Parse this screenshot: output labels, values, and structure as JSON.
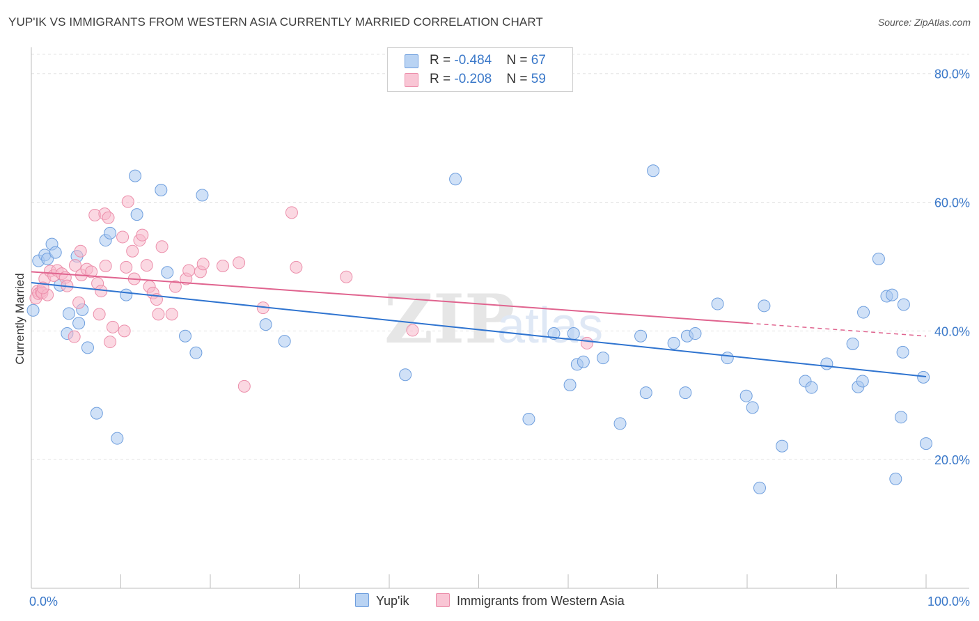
{
  "title": "YUP'IK VS IMMIGRANTS FROM WESTERN ASIA CURRENTLY MARRIED CORRELATION CHART",
  "source": "Source: ZipAtlas.com",
  "watermark": {
    "zip": "ZIP",
    "atlas": "atlas"
  },
  "legend": {
    "rows": [
      {
        "r_label": "R = ",
        "r_value": "-0.484",
        "n_label": "N = ",
        "n_value": "67",
        "fill": "#b9d3f3",
        "stroke": "#6f9fde"
      },
      {
        "r_label": "R = ",
        "r_value": "-0.208",
        "n_label": "N = ",
        "n_value": "59",
        "fill": "#f9c6d5",
        "stroke": "#ec8fab"
      }
    ]
  },
  "colors": {
    "blue_fill": "#a9c9f0",
    "blue_stroke": "#6f9fde",
    "blue_line": "#2f74d0",
    "pink_fill": "#f7b8cb",
    "pink_stroke": "#ec8fab",
    "pink_line": "#e0648f",
    "tick_label": "#3a78c9"
  },
  "chart_data": {
    "type": "scatter",
    "xlabel": "",
    "ylabel": "Currently Married",
    "xlim": [
      0,
      100
    ],
    "ylim": [
      0,
      83
    ],
    "x_tick_labels": [
      {
        "value": 0,
        "label": "0.0%"
      },
      {
        "value": 100,
        "label": "100.0%"
      }
    ],
    "y_tick_labels": [
      {
        "value": 20,
        "label": "20.0%"
      },
      {
        "value": 40,
        "label": "40.0%"
      },
      {
        "value": 60,
        "label": "60.0%"
      },
      {
        "value": 80,
        "label": "80.0%"
      }
    ],
    "grid": true,
    "legend_position": "top-center",
    "series": [
      {
        "name": "Yup'ik",
        "color": "#a9c9f0",
        "trend": {
          "x": [
            0,
            100
          ],
          "y": [
            47.5,
            32.9
          ],
          "dashed_from": null
        },
        "points": [
          [
            0.2,
            43.2
          ],
          [
            0.8,
            50.9
          ],
          [
            1.5,
            51.8
          ],
          [
            1.8,
            51.2
          ],
          [
            2.3,
            53.5
          ],
          [
            2.7,
            52.2
          ],
          [
            3.2,
            47.1
          ],
          [
            4.0,
            39.6
          ],
          [
            4.2,
            42.7
          ],
          [
            5.1,
            51.6
          ],
          [
            5.3,
            41.2
          ],
          [
            5.7,
            43.3
          ],
          [
            6.3,
            37.4
          ],
          [
            7.3,
            27.2
          ],
          [
            8.3,
            54.1
          ],
          [
            8.8,
            55.2
          ],
          [
            9.6,
            23.3
          ],
          [
            10.6,
            45.6
          ],
          [
            11.6,
            64.1
          ],
          [
            11.8,
            58.1
          ],
          [
            14.5,
            61.9
          ],
          [
            15.2,
            49.1
          ],
          [
            17.2,
            39.2
          ],
          [
            18.4,
            36.6
          ],
          [
            19.1,
            61.1
          ],
          [
            26.2,
            41.0
          ],
          [
            28.3,
            38.4
          ],
          [
            41.8,
            33.2
          ],
          [
            47.4,
            63.6
          ],
          [
            55.6,
            26.3
          ],
          [
            58.4,
            39.6
          ],
          [
            60.2,
            31.6
          ],
          [
            60.6,
            39.6
          ],
          [
            61.0,
            34.8
          ],
          [
            61.7,
            35.2
          ],
          [
            63.9,
            35.8
          ],
          [
            65.8,
            25.6
          ],
          [
            68.1,
            39.2
          ],
          [
            68.7,
            30.4
          ],
          [
            69.5,
            64.9
          ],
          [
            71.8,
            38.1
          ],
          [
            73.1,
            30.4
          ],
          [
            73.3,
            39.2
          ],
          [
            74.2,
            39.6
          ],
          [
            76.7,
            44.2
          ],
          [
            77.8,
            35.8
          ],
          [
            79.9,
            29.9
          ],
          [
            80.6,
            28.1
          ],
          [
            81.4,
            15.6
          ],
          [
            81.9,
            43.9
          ],
          [
            83.9,
            22.1
          ],
          [
            86.5,
            32.2
          ],
          [
            87.2,
            31.2
          ],
          [
            88.9,
            34.9
          ],
          [
            91.8,
            38.0
          ],
          [
            92.4,
            31.3
          ],
          [
            92.9,
            32.2
          ],
          [
            93.0,
            42.9
          ],
          [
            94.7,
            51.2
          ],
          [
            95.6,
            45.4
          ],
          [
            96.2,
            45.6
          ],
          [
            96.6,
            17.0
          ],
          [
            97.2,
            26.6
          ],
          [
            97.4,
            36.7
          ],
          [
            97.5,
            44.1
          ],
          [
            99.7,
            32.8
          ],
          [
            100.0,
            22.5
          ]
        ]
      },
      {
        "name": "Immigrants from Western Asia",
        "color": "#f7b8cb",
        "trend": {
          "x": [
            0,
            80.2
          ],
          "y": [
            49.2,
            41.2
          ],
          "dashed_from": 80.2,
          "dashed_to": [
            100,
            39.2
          ]
        },
        "points": [
          [
            0.5,
            45.1
          ],
          [
            0.7,
            46.2
          ],
          [
            0.8,
            45.8
          ],
          [
            1.1,
            46.1
          ],
          [
            1.2,
            45.9
          ],
          [
            1.5,
            48.1
          ],
          [
            1.8,
            45.6
          ],
          [
            2.1,
            49.3
          ],
          [
            2.5,
            48.6
          ],
          [
            2.9,
            49.4
          ],
          [
            3.4,
            48.9
          ],
          [
            3.8,
            48.3
          ],
          [
            4.0,
            47.0
          ],
          [
            4.8,
            39.1
          ],
          [
            4.9,
            50.2
          ],
          [
            5.3,
            44.4
          ],
          [
            5.5,
            52.4
          ],
          [
            5.6,
            48.7
          ],
          [
            6.2,
            49.6
          ],
          [
            6.7,
            49.2
          ],
          [
            7.1,
            58.0
          ],
          [
            7.4,
            47.4
          ],
          [
            7.6,
            42.6
          ],
          [
            7.8,
            46.2
          ],
          [
            8.2,
            58.2
          ],
          [
            8.3,
            50.1
          ],
          [
            8.6,
            57.6
          ],
          [
            8.8,
            38.3
          ],
          [
            9.1,
            40.6
          ],
          [
            10.2,
            54.6
          ],
          [
            10.4,
            40.0
          ],
          [
            10.6,
            49.9
          ],
          [
            10.8,
            60.1
          ],
          [
            11.3,
            52.4
          ],
          [
            11.5,
            48.1
          ],
          [
            12.1,
            54.1
          ],
          [
            12.4,
            54.9
          ],
          [
            12.9,
            50.2
          ],
          [
            13.2,
            46.9
          ],
          [
            13.6,
            45.9
          ],
          [
            14.0,
            44.9
          ],
          [
            14.2,
            42.6
          ],
          [
            14.6,
            53.1
          ],
          [
            15.7,
            42.6
          ],
          [
            16.1,
            46.9
          ],
          [
            17.3,
            48.1
          ],
          [
            17.6,
            49.4
          ],
          [
            18.9,
            49.2
          ],
          [
            19.2,
            50.4
          ],
          [
            21.4,
            50.1
          ],
          [
            23.2,
            50.6
          ],
          [
            23.8,
            31.4
          ],
          [
            25.9,
            43.6
          ],
          [
            29.1,
            58.4
          ],
          [
            29.6,
            49.9
          ],
          [
            35.2,
            48.4
          ],
          [
            42.6,
            40.1
          ],
          [
            62.1,
            38.1
          ],
          [
            1.3,
            46.7
          ]
        ]
      }
    ]
  }
}
